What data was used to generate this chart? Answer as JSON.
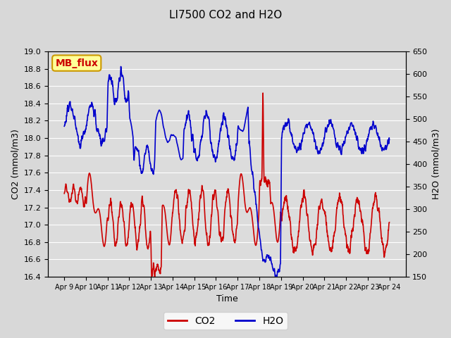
{
  "title": "LI7500 CO2 and H2O",
  "xlabel": "Time",
  "ylabel_left": "CO2 (mmol/m3)",
  "ylabel_right": "H2O (mmol/m3)",
  "co2_color": "#cc0000",
  "h2o_color": "#0000cc",
  "co2_ylim": [
    16.4,
    19.0
  ],
  "h2o_ylim": [
    150,
    650
  ],
  "co2_yticks": [
    16.4,
    16.6,
    16.8,
    17.0,
    17.2,
    17.4,
    17.6,
    17.8,
    18.0,
    18.2,
    18.4,
    18.6,
    18.8,
    19.0
  ],
  "h2o_yticks": [
    150,
    200,
    250,
    300,
    350,
    400,
    450,
    500,
    550,
    600,
    650
  ],
  "xtick_labels": [
    "Apr 9",
    "Apr 10",
    "Apr 11",
    "Apr 12",
    "Apr 13",
    "Apr 14",
    "Apr 15",
    "Apr 16",
    "Apr 17",
    "Apr 18",
    "Apr 19",
    "Apr 20",
    "Apr 21",
    "Apr 22",
    "Apr 23",
    "Apr 24"
  ],
  "annotation_text": "MB_flux",
  "annotation_bg": "#ffff99",
  "annotation_border": "#cc9900",
  "background_color": "#e8e8e8",
  "plot_bg_color": "#e0e0e0",
  "line_width": 1.2,
  "seed": 42,
  "n_points": 1500
}
